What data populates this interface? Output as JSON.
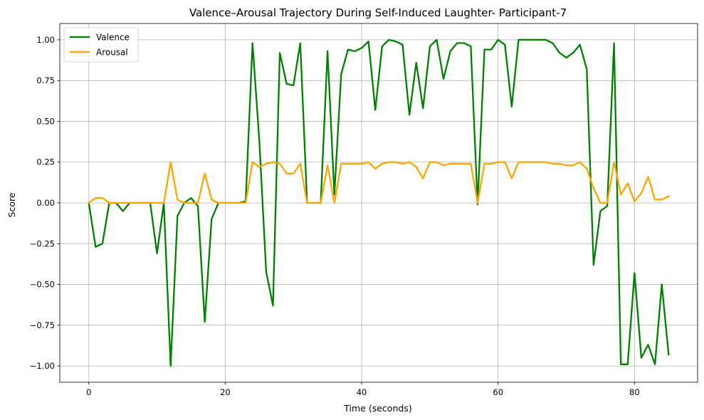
{
  "chart_data": {
    "type": "line",
    "title": "Valence–Arousal Trajectory During Self-Induced Laughter- Participant-7",
    "xlabel": "Time (seconds)",
    "ylabel": "Score",
    "xlim": [
      -4.25,
      89.25
    ],
    "ylim": [
      -1.1,
      1.1
    ],
    "xticks": [
      0,
      20,
      40,
      60,
      80
    ],
    "yticks": [
      -1.0,
      -0.75,
      -0.5,
      -0.25,
      0.0,
      0.25,
      0.5,
      0.75,
      1.0
    ],
    "ytick_labels": [
      "−1.00",
      "−0.75",
      "−0.50",
      "−0.25",
      "0.00",
      "0.25",
      "0.50",
      "0.75",
      "1.00"
    ],
    "grid": true,
    "legend_position": "upper-left",
    "x": [
      0,
      1,
      2,
      3,
      4,
      5,
      6,
      7,
      8,
      9,
      10,
      11,
      12,
      13,
      14,
      15,
      16,
      17,
      18,
      19,
      20,
      21,
      22,
      23,
      24,
      25,
      26,
      27,
      28,
      29,
      30,
      31,
      32,
      33,
      34,
      35,
      36,
      37,
      38,
      39,
      40,
      41,
      42,
      43,
      44,
      45,
      46,
      47,
      48,
      49,
      50,
      51,
      52,
      53,
      54,
      55,
      56,
      57,
      58,
      59,
      60,
      61,
      62,
      63,
      64,
      65,
      66,
      67,
      68,
      69,
      70,
      71,
      72,
      73,
      74,
      75,
      76,
      77,
      78,
      79,
      80,
      81,
      82,
      83,
      84,
      85
    ],
    "series": [
      {
        "name": "Valence",
        "color": "#008000",
        "values": [
          0.0,
          -0.27,
          -0.25,
          0.0,
          0.0,
          -0.05,
          0.0,
          0.0,
          0.0,
          0.0,
          -0.31,
          0.0,
          -1.0,
          -0.08,
          0.0,
          0.03,
          -0.02,
          -0.73,
          -0.1,
          0.0,
          0.0,
          0.0,
          0.0,
          0.01,
          0.98,
          0.38,
          -0.42,
          -0.63,
          0.92,
          0.73,
          0.72,
          0.98,
          0.0,
          0.0,
          0.0,
          0.93,
          0.05,
          0.79,
          0.94,
          0.93,
          0.95,
          0.99,
          0.57,
          0.96,
          1.0,
          0.99,
          0.97,
          0.54,
          0.86,
          0.58,
          0.96,
          1.0,
          0.76,
          0.93,
          0.98,
          0.98,
          0.96,
          -0.01,
          0.94,
          0.94,
          1.0,
          0.97,
          0.59,
          1.0,
          1.0,
          1.0,
          1.0,
          1.0,
          0.98,
          0.92,
          0.89,
          0.92,
          0.97,
          0.82,
          -0.38,
          -0.05,
          -0.02,
          0.98,
          -0.99,
          -0.99,
          -0.43,
          -0.95,
          -0.87,
          -0.99,
          -0.5,
          -0.93
        ]
      },
      {
        "name": "Arousal",
        "color": "#FFA500",
        "values": [
          0.0,
          0.03,
          0.03,
          0.0,
          0.0,
          0.0,
          0.0,
          0.0,
          0.0,
          0.0,
          0.0,
          0.0,
          0.25,
          0.02,
          0.0,
          0.0,
          0.0,
          0.18,
          0.02,
          0.0,
          0.0,
          0.0,
          0.0,
          0.0,
          0.25,
          0.22,
          0.24,
          0.25,
          0.24,
          0.18,
          0.18,
          0.24,
          0.0,
          0.0,
          0.0,
          0.23,
          0.0,
          0.24,
          0.24,
          0.24,
          0.24,
          0.25,
          0.21,
          0.24,
          0.25,
          0.25,
          0.24,
          0.25,
          0.22,
          0.15,
          0.25,
          0.25,
          0.23,
          0.24,
          0.24,
          0.24,
          0.24,
          0.0,
          0.24,
          0.24,
          0.25,
          0.25,
          0.15,
          0.25,
          0.25,
          0.25,
          0.25,
          0.25,
          0.24,
          0.24,
          0.23,
          0.23,
          0.25,
          0.21,
          0.09,
          0.0,
          0.0,
          0.25,
          0.05,
          0.12,
          0.01,
          0.06,
          0.16,
          0.02,
          0.02,
          0.04
        ]
      }
    ]
  }
}
